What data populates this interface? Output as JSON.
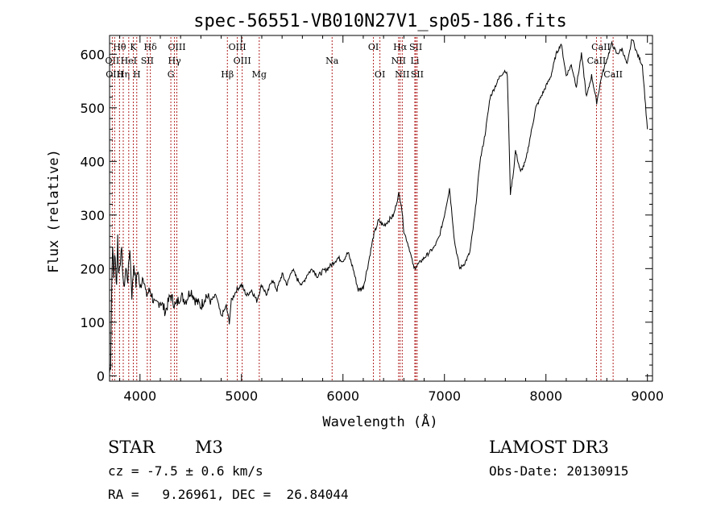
{
  "chart_data": {
    "type": "line",
    "title": "spec-56551-VB010N27V1_sp05-186.fits",
    "xlabel": "Wavelength (Å)",
    "ylabel": "Flux (relative)",
    "xlim": [
      3700,
      9050
    ],
    "ylim": [
      -10,
      635
    ],
    "x_ticks": [
      4000,
      5000,
      6000,
      7000,
      8000,
      9000
    ],
    "x_tick_labels": [
      "4000",
      "5000",
      "6000",
      "7000",
      "8000",
      "9000"
    ],
    "y_ticks": [
      0,
      100,
      200,
      300,
      400,
      500,
      600
    ],
    "y_tick_labels": [
      "0",
      "100",
      "200",
      "300",
      "400",
      "500",
      "600"
    ],
    "series": [
      {
        "name": "flux",
        "x": [
          3700,
          3710,
          3720,
          3730,
          3740,
          3750,
          3760,
          3770,
          3780,
          3790,
          3800,
          3820,
          3840,
          3860,
          3880,
          3900,
          3920,
          3940,
          3960,
          3980,
          4000,
          4030,
          4060,
          4100,
          4150,
          4200,
          4250,
          4300,
          4350,
          4400,
          4450,
          4500,
          4550,
          4600,
          4650,
          4700,
          4750,
          4800,
          4850,
          4880,
          4900,
          4950,
          5000,
          5050,
          5100,
          5150,
          5200,
          5250,
          5300,
          5350,
          5400,
          5450,
          5500,
          5550,
          5600,
          5650,
          5700,
          5750,
          5800,
          5850,
          5900,
          5950,
          6000,
          6050,
          6100,
          6150,
          6200,
          6250,
          6300,
          6350,
          6400,
          6450,
          6500,
          6550,
          6575,
          6600,
          6650,
          6700,
          6750,
          6800,
          6850,
          6900,
          6950,
          7000,
          7050,
          7100,
          7150,
          7200,
          7250,
          7300,
          7350,
          7400,
          7450,
          7500,
          7550,
          7600,
          7620,
          7650,
          7680,
          7700,
          7750,
          7800,
          7850,
          7900,
          7950,
          8000,
          8050,
          8100,
          8150,
          8200,
          8250,
          8300,
          8350,
          8400,
          8450,
          8500,
          8550,
          8600,
          8650,
          8700,
          8750,
          8800,
          8850,
          8900,
          8950,
          9000
        ],
        "values": [
          5,
          20,
          150,
          250,
          180,
          230,
          200,
          170,
          260,
          190,
          210,
          230,
          160,
          200,
          180,
          240,
          150,
          210,
          170,
          200,
          160,
          190,
          150,
          160,
          130,
          140,
          120,
          150,
          130,
          150,
          140,
          160,
          140,
          130,
          150,
          140,
          150,
          110,
          130,
          100,
          140,
          160,
          170,
          150,
          160,
          140,
          170,
          150,
          180,
          160,
          190,
          170,
          200,
          180,
          170,
          190,
          200,
          185,
          195,
          200,
          210,
          220,
          215,
          230,
          200,
          160,
          165,
          210,
          260,
          290,
          280,
          290,
          300,
          340,
          320,
          270,
          240,
          200,
          210,
          220,
          230,
          240,
          260,
          300,
          350,
          250,
          200,
          210,
          230,
          300,
          400,
          450,
          520,
          540,
          560,
          570,
          560,
          340,
          380,
          420,
          380,
          400,
          450,
          500,
          520,
          540,
          560,
          600,
          620,
          560,
          580,
          540,
          600,
          520,
          560,
          510,
          560,
          590,
          620,
          600,
          610,
          580,
          630,
          600,
          580,
          460
        ]
      }
    ],
    "line_markers": [
      {
        "label": "Hθ",
        "x": 3798,
        "row": 1
      },
      {
        "label": "OII",
        "x": 3727,
        "row": 2
      },
      {
        "label": "OIII",
        "x": 3750,
        "row": 3
      },
      {
        "label": "Hη",
        "x": 3835,
        "row": 3
      },
      {
        "label": "K",
        "x": 3934,
        "row": 1
      },
      {
        "label": "HeI",
        "x": 3889,
        "row": 2
      },
      {
        "label": "H",
        "x": 3968,
        "row": 3
      },
      {
        "label": "SII",
        "x": 4072,
        "row": 2
      },
      {
        "label": "Hδ",
        "x": 4102,
        "row": 1
      },
      {
        "label": "OIII",
        "x": 4363,
        "row": 1
      },
      {
        "label": "Hγ",
        "x": 4340,
        "row": 2
      },
      {
        "label": "G",
        "x": 4304,
        "row": 3
      },
      {
        "label": "Hβ",
        "x": 4861,
        "row": 3
      },
      {
        "label": "OIII",
        "x": 4959,
        "row": 1
      },
      {
        "label": "OIII",
        "x": 5007,
        "row": 2
      },
      {
        "label": "Mg",
        "x": 5175,
        "row": 3
      },
      {
        "label": "Na",
        "x": 5893,
        "row": 2
      },
      {
        "label": "OI",
        "x": 6300,
        "row": 1
      },
      {
        "label": "OI",
        "x": 6364,
        "row": 3
      },
      {
        "label": "Hα",
        "x": 6563,
        "row": 1
      },
      {
        "label": "NII",
        "x": 6548,
        "row": 2
      },
      {
        "label": "NII",
        "x": 6584,
        "row": 3
      },
      {
        "label": "SII",
        "x": 6717,
        "row": 1
      },
      {
        "label": "Li",
        "x": 6708,
        "row": 2
      },
      {
        "label": "SII",
        "x": 6731,
        "row": 3
      },
      {
        "label": "CaII",
        "x": 8542,
        "row": 1
      },
      {
        "label": "CaII",
        "x": 8498,
        "row": 2
      },
      {
        "label": "CaII",
        "x": 8662,
        "row": 3
      }
    ]
  },
  "info": {
    "object_class": "STAR",
    "subclass": "M3",
    "survey": "LAMOST DR3",
    "cz": "cz = -7.5 ± 0.6 km/s",
    "obs_date": "Obs-Date: 20130915",
    "coords": "RA =   9.26961, DEC =  26.84044"
  }
}
